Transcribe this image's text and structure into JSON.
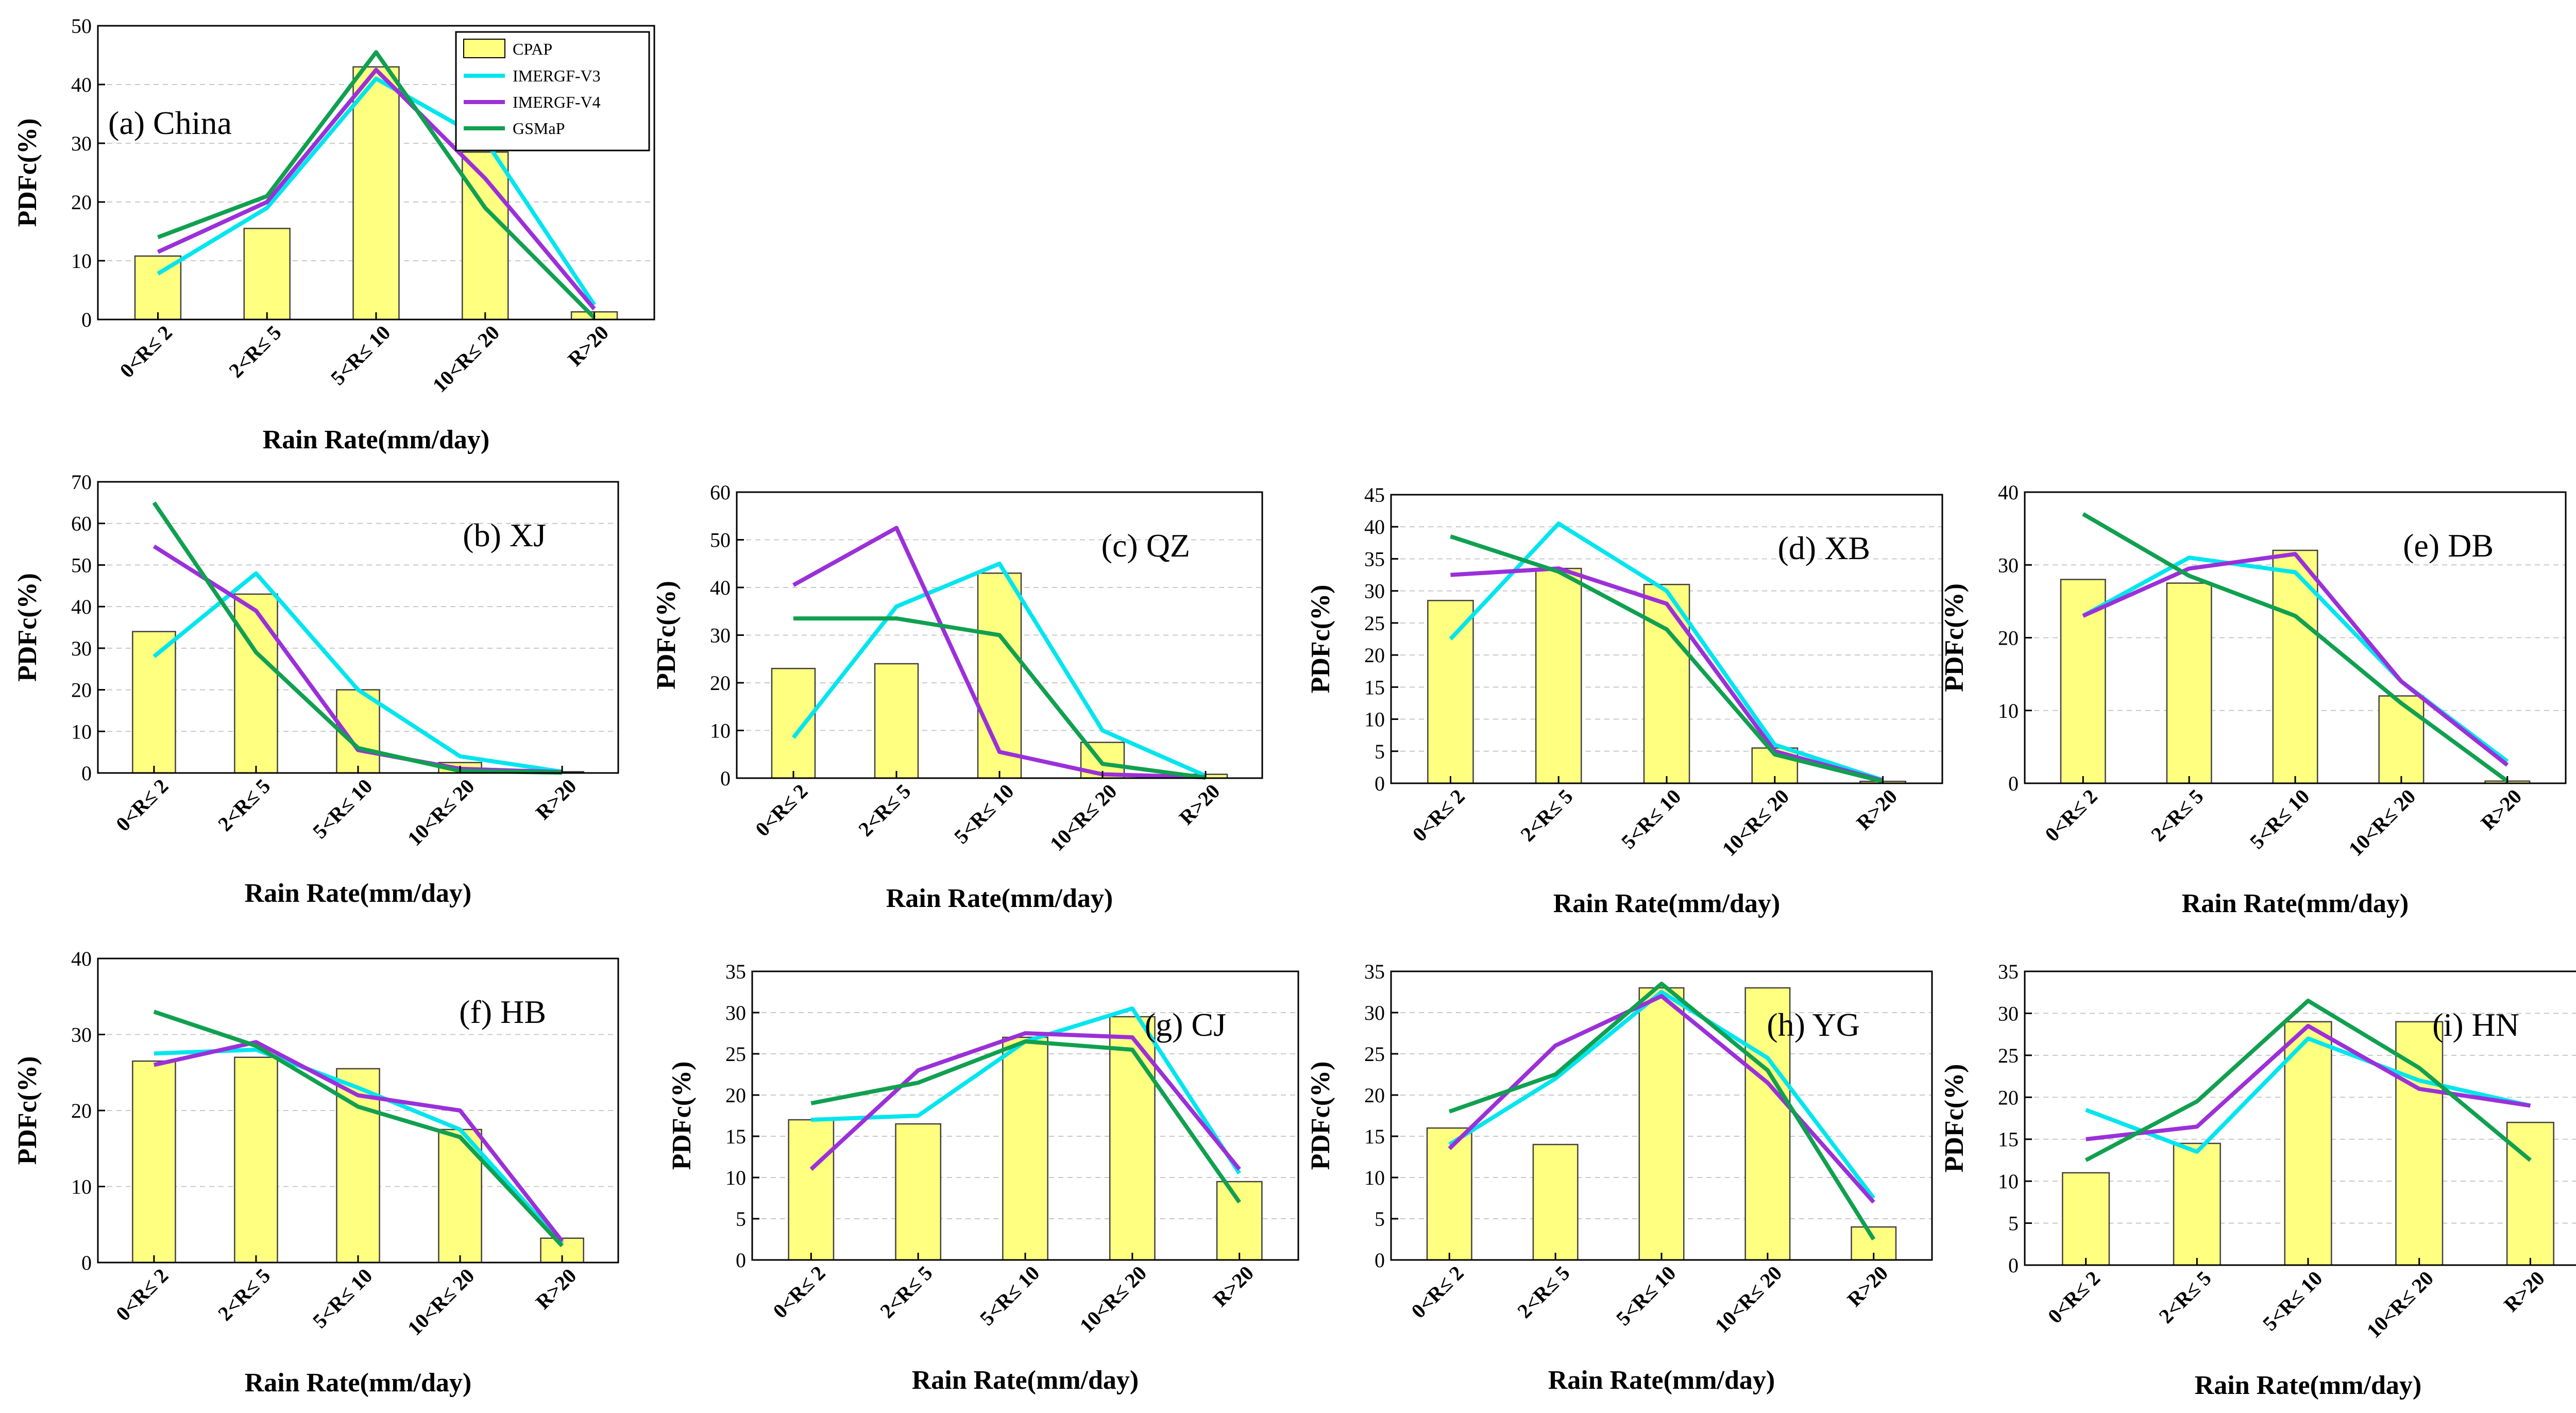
{
  "figure": {
    "legend": {
      "entries": [
        "CPAP",
        "IMERGF-V3",
        "IMERGF-V4",
        "GSMaP"
      ],
      "colors": [
        "#ffff80",
        "#00e5ee",
        "#9b30d9",
        "#10a050"
      ]
    }
  },
  "chart_data": [
    {
      "type": "bar",
      "title": "(a) China",
      "categories": [
        "0<R≤ 2",
        "2<R≤ 5",
        "5<R≤ 10",
        "10<R≤ 20",
        "R>20"
      ],
      "ylim": [
        0,
        50
      ],
      "yticks": [
        "0",
        "10",
        "20",
        "30",
        "40",
        "50"
      ],
      "ylabel": "PDFc(%)",
      "xlabel": "Rain Rate(mm/day)",
      "bar_values": [
        10.8,
        15.5,
        43.0,
        28.5,
        1.3
      ],
      "lines": [
        {
          "name": "IMERGF-V3",
          "values": [
            7.8,
            19.0,
            41.0,
            30.5,
            2.5
          ]
        },
        {
          "name": "IMERGF-V4",
          "values": [
            11.5,
            20.0,
            42.5,
            24.0,
            1.8
          ]
        },
        {
          "name": "GSMaP",
          "values": [
            14.0,
            21.0,
            45.5,
            19.0,
            0.3
          ]
        }
      ]
    },
    {
      "type": "bar",
      "title": "(b) XJ",
      "categories": [
        "0<R≤ 2",
        "2<R≤ 5",
        "5<R≤ 10",
        "10<R≤ 20",
        "R>20"
      ],
      "ylim": [
        0,
        70
      ],
      "yticks": [
        "0",
        "10",
        "20",
        "30",
        "40",
        "50",
        "60",
        "70"
      ],
      "ylabel": "PDFc(%)",
      "xlabel": "Rain Rate(mm/day)",
      "bar_values": [
        34.0,
        43.0,
        20.0,
        2.5,
        0.3
      ],
      "lines": [
        {
          "name": "IMERGF-V3",
          "values": [
            28.0,
            48.0,
            20.0,
            4.0,
            0.3
          ]
        },
        {
          "name": "IMERGF-V4",
          "values": [
            54.5,
            39.0,
            5.5,
            1.0,
            0.2
          ]
        },
        {
          "name": "GSMaP",
          "values": [
            65.0,
            29.0,
            6.0,
            0.5,
            0.1
          ]
        }
      ]
    },
    {
      "type": "bar",
      "title": "(c) QZ",
      "categories": [
        "0<R≤ 2",
        "2<R≤ 5",
        "5<R≤ 10",
        "10<R≤ 20",
        "R>20"
      ],
      "ylim": [
        0,
        60
      ],
      "yticks": [
        "0",
        "10",
        "20",
        "30",
        "40",
        "50",
        "60"
      ],
      "ylabel": "PDFc(%)",
      "xlabel": "Rain Rate(mm/day)",
      "bar_values": [
        23.0,
        24.0,
        43.0,
        7.5,
        0.8
      ],
      "lines": [
        {
          "name": "IMERGF-V3",
          "values": [
            8.5,
            36.0,
            45.0,
            10.0,
            0.5
          ]
        },
        {
          "name": "IMERGF-V4",
          "values": [
            40.5,
            52.5,
            5.5,
            0.8,
            0.2
          ]
        },
        {
          "name": "GSMaP",
          "values": [
            33.5,
            33.5,
            30.0,
            3.0,
            0.1
          ]
        }
      ]
    },
    {
      "type": "bar",
      "title": "(d) XB",
      "categories": [
        "0<R≤ 2",
        "2<R≤ 5",
        "5<R≤ 10",
        "10<R≤ 20",
        "R>20"
      ],
      "ylim": [
        0,
        45
      ],
      "yticks": [
        "0",
        "5",
        "10",
        "15",
        "20",
        "25",
        "30",
        "35",
        "40",
        "45"
      ],
      "ylabel": "PDFc(%)",
      "xlabel": "Rain Rate(mm/day)",
      "bar_values": [
        28.5,
        33.5,
        31.0,
        5.5,
        0.3
      ],
      "lines": [
        {
          "name": "IMERGF-V3",
          "values": [
            22.5,
            40.5,
            30.0,
            6.0,
            0.5
          ]
        },
        {
          "name": "IMERGF-V4",
          "values": [
            32.5,
            33.5,
            28.0,
            5.0,
            0.4
          ]
        },
        {
          "name": "GSMaP",
          "values": [
            38.5,
            33.0,
            24.0,
            4.5,
            0.3
          ]
        }
      ]
    },
    {
      "type": "bar",
      "title": "(e) DB",
      "categories": [
        "0<R≤ 2",
        "2<R≤ 5",
        "5<R≤ 10",
        "10<R≤ 20",
        "R>20"
      ],
      "ylim": [
        0,
        40
      ],
      "yticks": [
        "0",
        "10",
        "20",
        "30",
        "40"
      ],
      "ylabel": "PDFc(%)",
      "xlabel": "Rain Rate(mm/day)",
      "bar_values": [
        28.0,
        27.5,
        32.0,
        12.0,
        0.3
      ],
      "lines": [
        {
          "name": "IMERGF-V3",
          "values": [
            23.0,
            31.0,
            29.0,
            14.0,
            3.0
          ]
        },
        {
          "name": "IMERGF-V4",
          "values": [
            23.0,
            29.5,
            31.5,
            14.0,
            2.5
          ]
        },
        {
          "name": "GSMaP",
          "values": [
            37.0,
            28.5,
            23.0,
            11.0,
            0.3
          ]
        }
      ]
    },
    {
      "type": "bar",
      "title": "(f) HB",
      "categories": [
        "0<R≤ 2",
        "2<R≤ 5",
        "5<R≤ 10",
        "10<R≤ 20",
        "R>20"
      ],
      "ylim": [
        0,
        40
      ],
      "yticks": [
        "0",
        "10",
        "20",
        "30",
        "40"
      ],
      "ylabel": "PDFc(%)",
      "xlabel": "Rain Rate(mm/day)",
      "bar_values": [
        26.5,
        27.0,
        25.5,
        17.5,
        3.2
      ],
      "lines": [
        {
          "name": "IMERGF-V3",
          "values": [
            27.5,
            28.0,
            23.0,
            17.5,
            2.5
          ]
        },
        {
          "name": "IMERGF-V4",
          "values": [
            26.0,
            29.0,
            22.0,
            20.0,
            2.8
          ]
        },
        {
          "name": "GSMaP",
          "values": [
            33.0,
            28.5,
            20.5,
            16.5,
            2.2
          ]
        }
      ]
    },
    {
      "type": "bar",
      "title": "(g) CJ",
      "categories": [
        "0<R≤ 2",
        "2<R≤ 5",
        "5<R≤ 10",
        "10<R≤ 20",
        "R>20"
      ],
      "ylim": [
        0,
        35
      ],
      "yticks": [
        "0",
        "5",
        "10",
        "15",
        "20",
        "25",
        "30",
        "35"
      ],
      "ylabel": "PDFc(%)",
      "xlabel": "Rain Rate(mm/day)",
      "bar_values": [
        17.0,
        16.5,
        27.0,
        29.5,
        9.5
      ],
      "lines": [
        {
          "name": "IMERGF-V3",
          "values": [
            17.0,
            17.5,
            26.5,
            30.5,
            10.5
          ]
        },
        {
          "name": "IMERGF-V4",
          "values": [
            11.0,
            23.0,
            27.5,
            27.0,
            11.0
          ]
        },
        {
          "name": "GSMaP",
          "values": [
            19.0,
            21.5,
            26.5,
            25.5,
            7.0
          ]
        }
      ]
    },
    {
      "type": "bar",
      "title": "(h) YG",
      "categories": [
        "0<R≤ 2",
        "2<R≤ 5",
        "5<R≤ 10",
        "10<R≤ 20",
        "R>20"
      ],
      "ylim": [
        0,
        35
      ],
      "yticks": [
        "0",
        "5",
        "10",
        "15",
        "20",
        "25",
        "30",
        "35"
      ],
      "ylabel": "PDFc(%)",
      "xlabel": "Rain Rate(mm/day)",
      "bar_values": [
        16.0,
        14.0,
        33.0,
        33.0,
        4.0
      ],
      "lines": [
        {
          "name": "IMERGF-V3",
          "values": [
            14.0,
            22.0,
            32.5,
            24.5,
            7.5
          ]
        },
        {
          "name": "IMERGF-V4",
          "values": [
            13.5,
            26.0,
            32.0,
            21.5,
            7.0
          ]
        },
        {
          "name": "GSMaP",
          "values": [
            18.0,
            22.5,
            33.5,
            23.0,
            2.5
          ]
        }
      ]
    },
    {
      "type": "bar",
      "title": "(i) HN",
      "categories": [
        "0<R≤ 2",
        "2<R≤ 5",
        "5<R≤ 10",
        "10<R≤ 20",
        "R>20"
      ],
      "ylim": [
        0,
        35
      ],
      "yticks": [
        "0",
        "5",
        "10",
        "15",
        "20",
        "25",
        "30",
        "35"
      ],
      "ylabel": "PDFc(%)",
      "xlabel": "Rain Rate(mm/day)",
      "bar_values": [
        11.0,
        14.5,
        29.0,
        29.0,
        17.0
      ],
      "lines": [
        {
          "name": "IMERGF-V3",
          "values": [
            18.5,
            13.5,
            27.0,
            22.0,
            19.0
          ]
        },
        {
          "name": "IMERGF-V4",
          "values": [
            15.0,
            16.5,
            28.5,
            21.0,
            19.0
          ]
        },
        {
          "name": "GSMaP",
          "values": [
            12.5,
            19.5,
            31.5,
            23.5,
            12.5
          ]
        }
      ]
    }
  ]
}
